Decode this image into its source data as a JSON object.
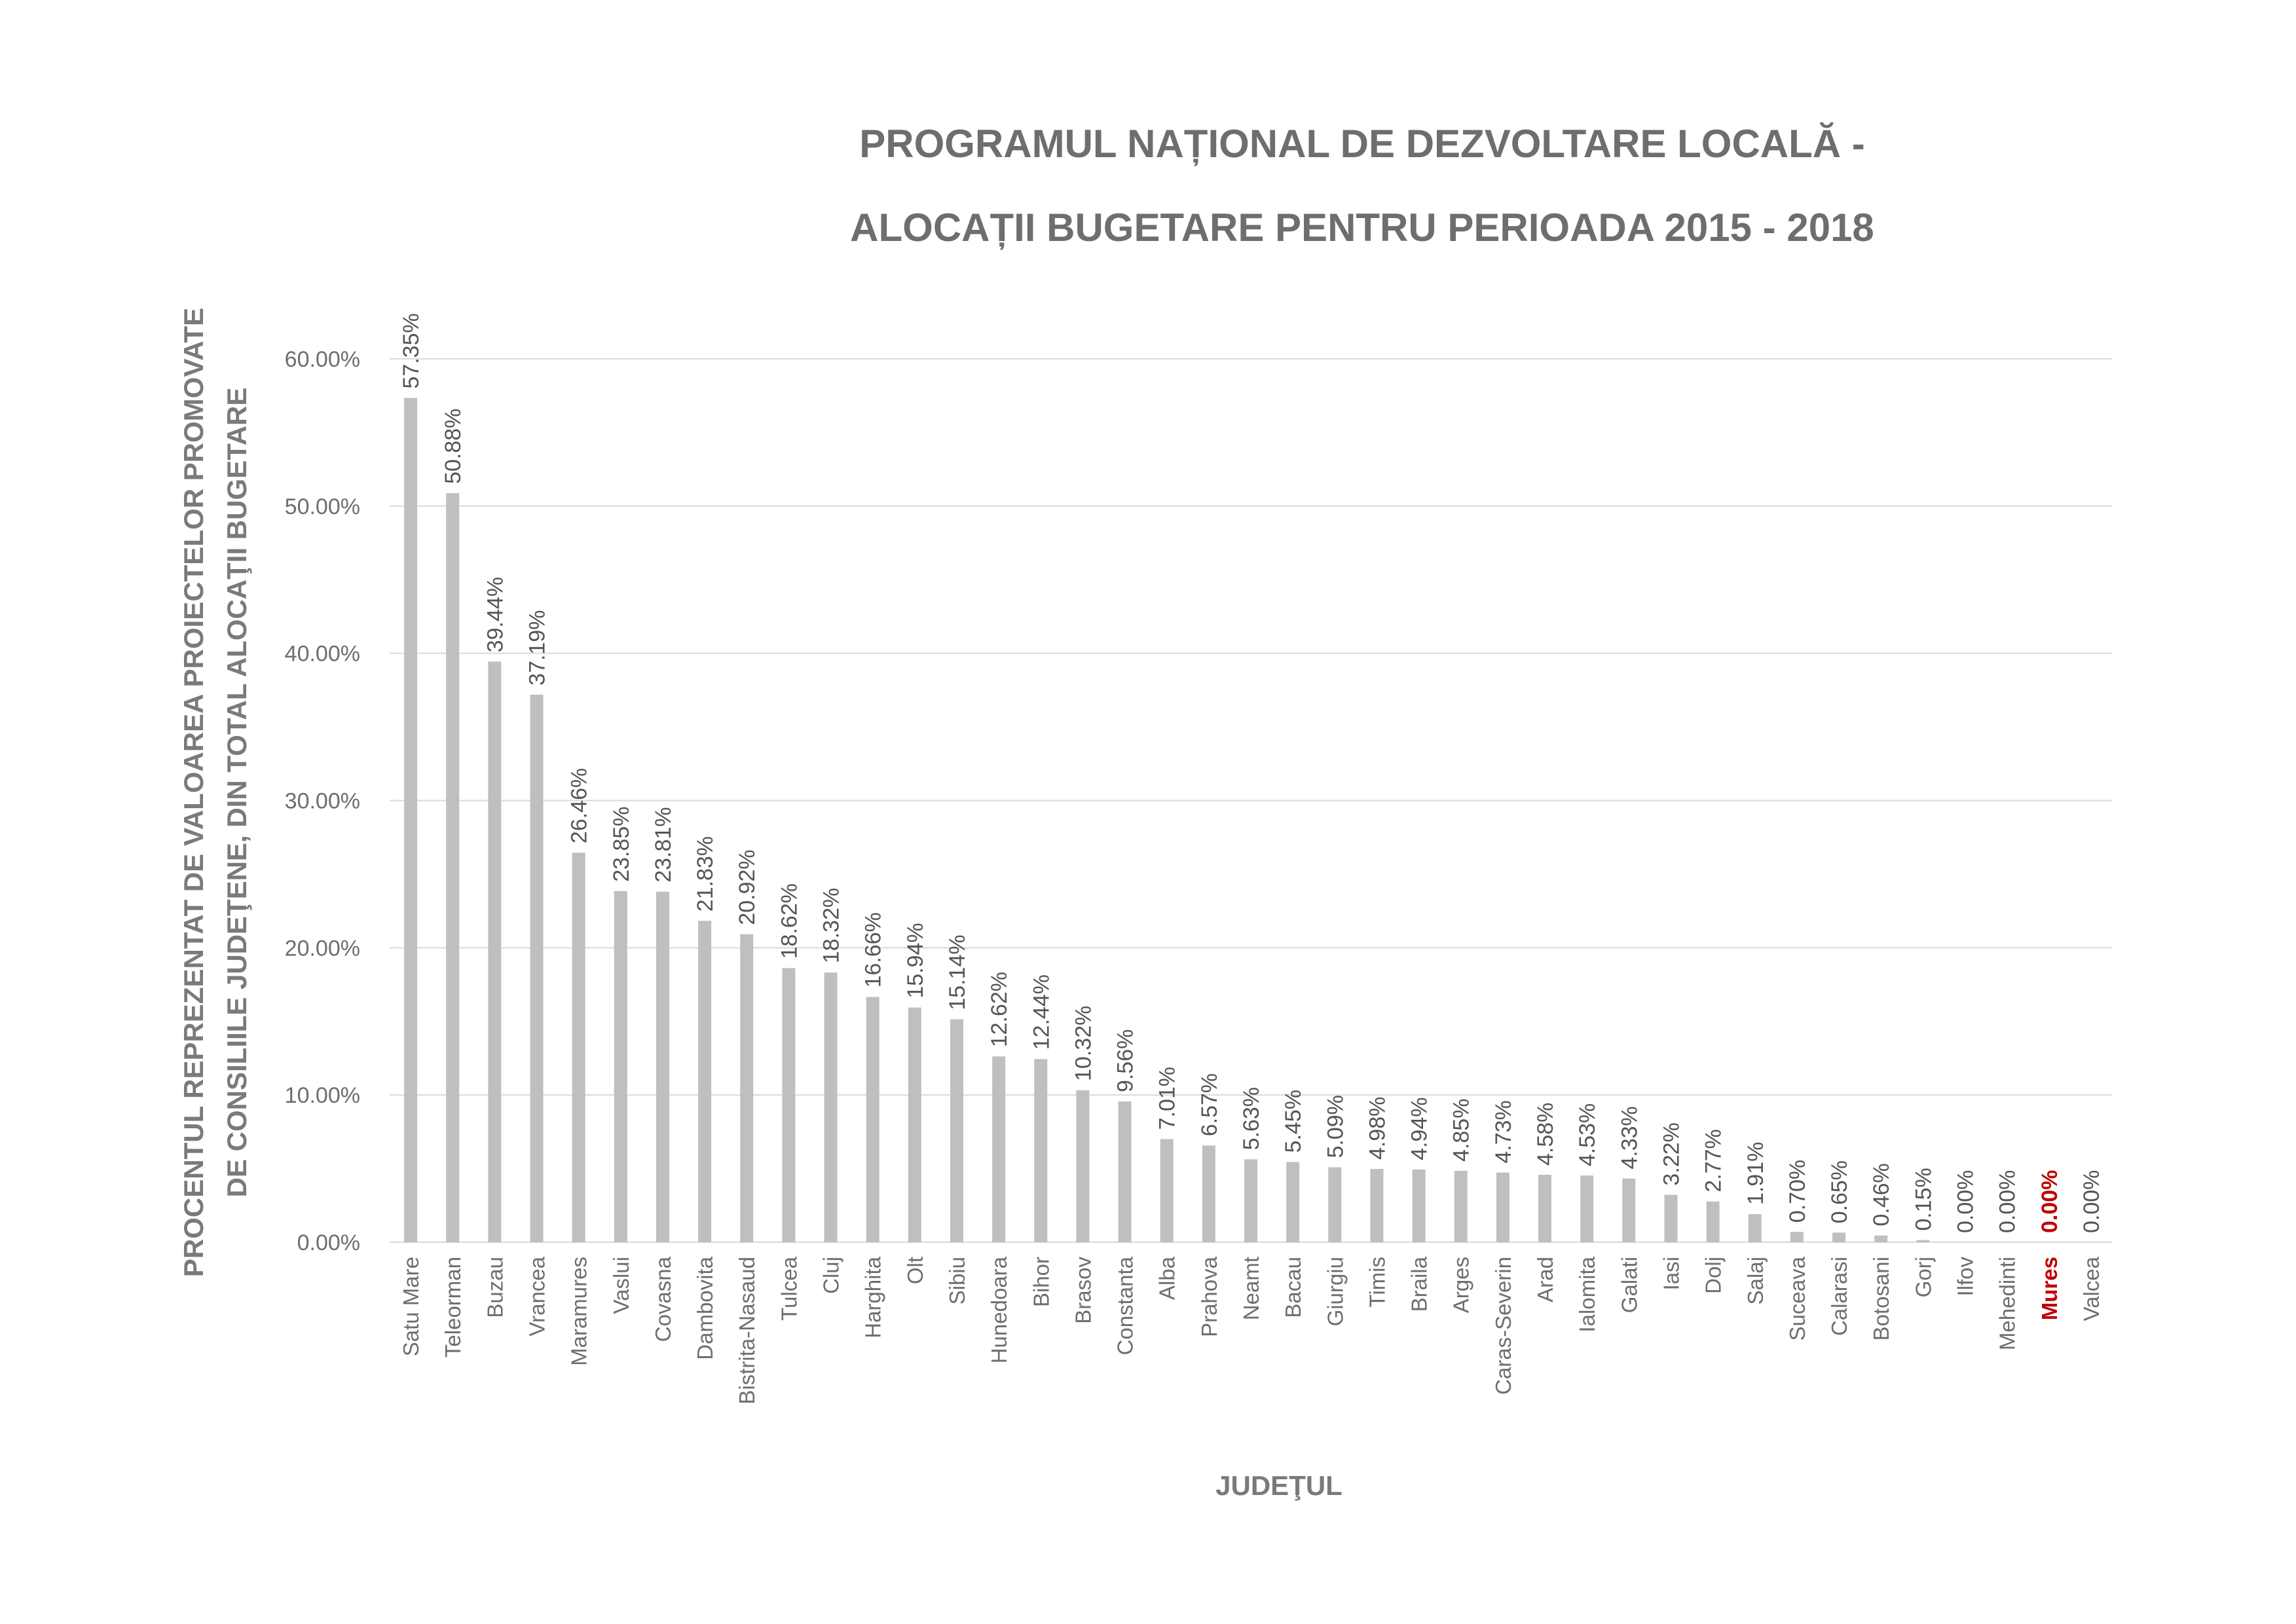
{
  "chart_data": {
    "type": "bar",
    "title": [
      "PROGRAMUL NAȚIONAL DE DEZVOLTARE LOCALĂ  -",
      "ALOCAȚII BUGETARE PENTRU PERIOADA 2015 - 2018"
    ],
    "xlabel": "JUDEŢUL",
    "ylabel": [
      "PROCENTUL REPREZENTAT DE VALOAREA PROIECTELOR PROMOVATE",
      "DE CONSILIILE JUDEŢENE, DIN TOTAL ALOCAŢII BUGETARE"
    ],
    "ylim": [
      0,
      60
    ],
    "yticks": [
      0,
      10,
      20,
      30,
      40,
      50,
      60
    ],
    "ytick_labels": [
      "0.00%",
      "10.00%",
      "20.00%",
      "30.00%",
      "40.00%",
      "50.00%",
      "60.00%"
    ],
    "grid": true,
    "legend": "none",
    "bar_color": "#bfbfbf",
    "highlight_color": "#c00000",
    "highlight_category": "Mures",
    "categories": [
      "Satu Mare",
      "Teleorman",
      "Buzau",
      "Vrancea",
      "Maramures",
      "Vaslui",
      "Covasna",
      "Dambovita",
      "Bistrita-Nasaud",
      "Tulcea",
      "Cluj",
      "Harghita",
      "Olt",
      "Sibiu",
      "Hunedoara",
      "Bihor",
      "Brasov",
      "Constanta",
      "Alba",
      "Prahova",
      "Neamt",
      "Bacau",
      "Giurgiu",
      "Timis",
      "Braila",
      "Arges",
      "Caras-Severin",
      "Arad",
      "Ialomita",
      "Galati",
      "Iasi",
      "Dolj",
      "Salaj",
      "Suceava",
      "Calarasi",
      "Botosani",
      "Gorj",
      "Ilfov",
      "Mehedinti",
      "Mures",
      "Valcea"
    ],
    "values": [
      57.35,
      50.88,
      39.44,
      37.19,
      26.46,
      23.85,
      23.81,
      21.83,
      20.92,
      18.62,
      18.32,
      16.66,
      15.94,
      15.14,
      12.62,
      12.44,
      10.32,
      9.56,
      7.01,
      6.57,
      5.63,
      5.45,
      5.09,
      4.98,
      4.94,
      4.85,
      4.73,
      4.58,
      4.53,
      4.33,
      3.22,
      2.77,
      1.91,
      0.7,
      0.65,
      0.46,
      0.15,
      0.0,
      0.0,
      0.0,
      0.0
    ],
    "data_labels": [
      "57.35%",
      "50.88%",
      "39.44%",
      "37.19%",
      "26.46%",
      "23.85%",
      "23.81%",
      "21.83%",
      "20.92%",
      "18.62%",
      "18.32%",
      "16.66%",
      "15.94%",
      "15.14%",
      "12.62%",
      "12.44%",
      "10.32%",
      "9.56%",
      "7.01%",
      "6.57%",
      "5.63%",
      "5.45%",
      "5.09%",
      "4.98%",
      "4.94%",
      "4.85%",
      "4.73%",
      "4.58%",
      "4.53%",
      "4.33%",
      "3.22%",
      "2.77%",
      "1.91%",
      "0.70%",
      "0.65%",
      "0.46%",
      "0.15%",
      "0.00%",
      "0.00%",
      "0.00%",
      "0.00%"
    ]
  }
}
